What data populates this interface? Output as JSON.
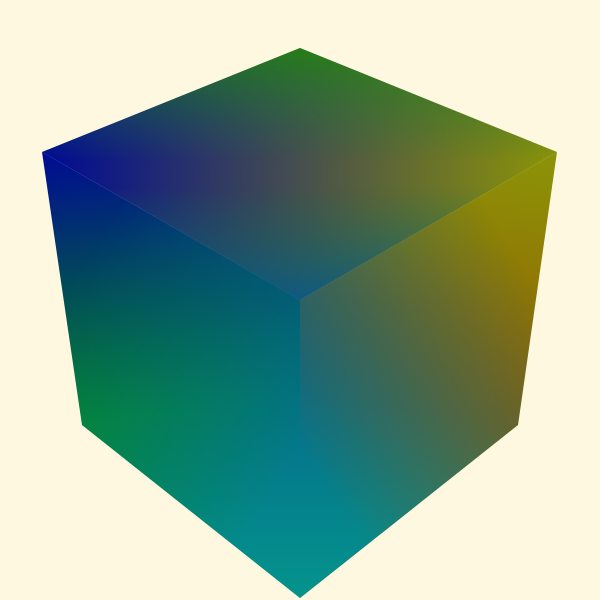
{
  "scene": {
    "background_color": "#fff8e0",
    "object": "color-cube",
    "vertex_colors": {
      "top": "#1c8c08",
      "upper_left": "#000a94",
      "upper_right": "#8c9408",
      "center": "#045c8c",
      "lower_left": "#048c1c",
      "lower_right": "#945c00",
      "bottom": "#04948c"
    }
  }
}
